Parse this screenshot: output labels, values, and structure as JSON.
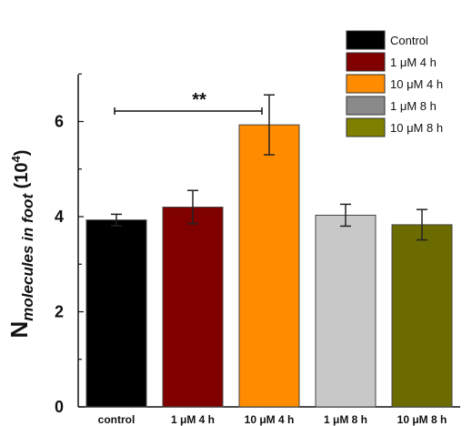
{
  "chart_data": {
    "type": "bar",
    "categories": [
      "control",
      "1 μM 4 h",
      "10 μM 4 h",
      "1 μM 8 h",
      "10 μM 8 h"
    ],
    "values": [
      3.93,
      4.2,
      5.93,
      4.03,
      3.83
    ],
    "errors": [
      0.12,
      0.35,
      0.63,
      0.23,
      0.32
    ],
    "bar_colors": [
      "#000000",
      "#800000",
      "#FF8C00",
      "#C8C8C8",
      "#6B6B00"
    ],
    "ylabel_main": "N",
    "ylabel_sub": "molecules in foot",
    "ylabel_unit_open": " (10",
    "ylabel_unit_exp": "4",
    "ylabel_unit_close": ")",
    "ylim": [
      0,
      8
    ],
    "yticks": [
      "0",
      "2",
      "4",
      "6"
    ],
    "legend": {
      "placement": "top-right",
      "entries": [
        {
          "label": "Control",
          "color": "#000000"
        },
        {
          "label": "1 μM 4 h",
          "color": "#800000"
        },
        {
          "label": "10 μM 4 h",
          "color": "#FF8C00"
        },
        {
          "label": "1 μM 8 h",
          "color": "#8A8A8A"
        },
        {
          "label": "10 μM 8 h",
          "color": "#808000"
        }
      ]
    },
    "significance": {
      "label": "**",
      "from": 0,
      "to": 2,
      "y": 6.22
    }
  }
}
